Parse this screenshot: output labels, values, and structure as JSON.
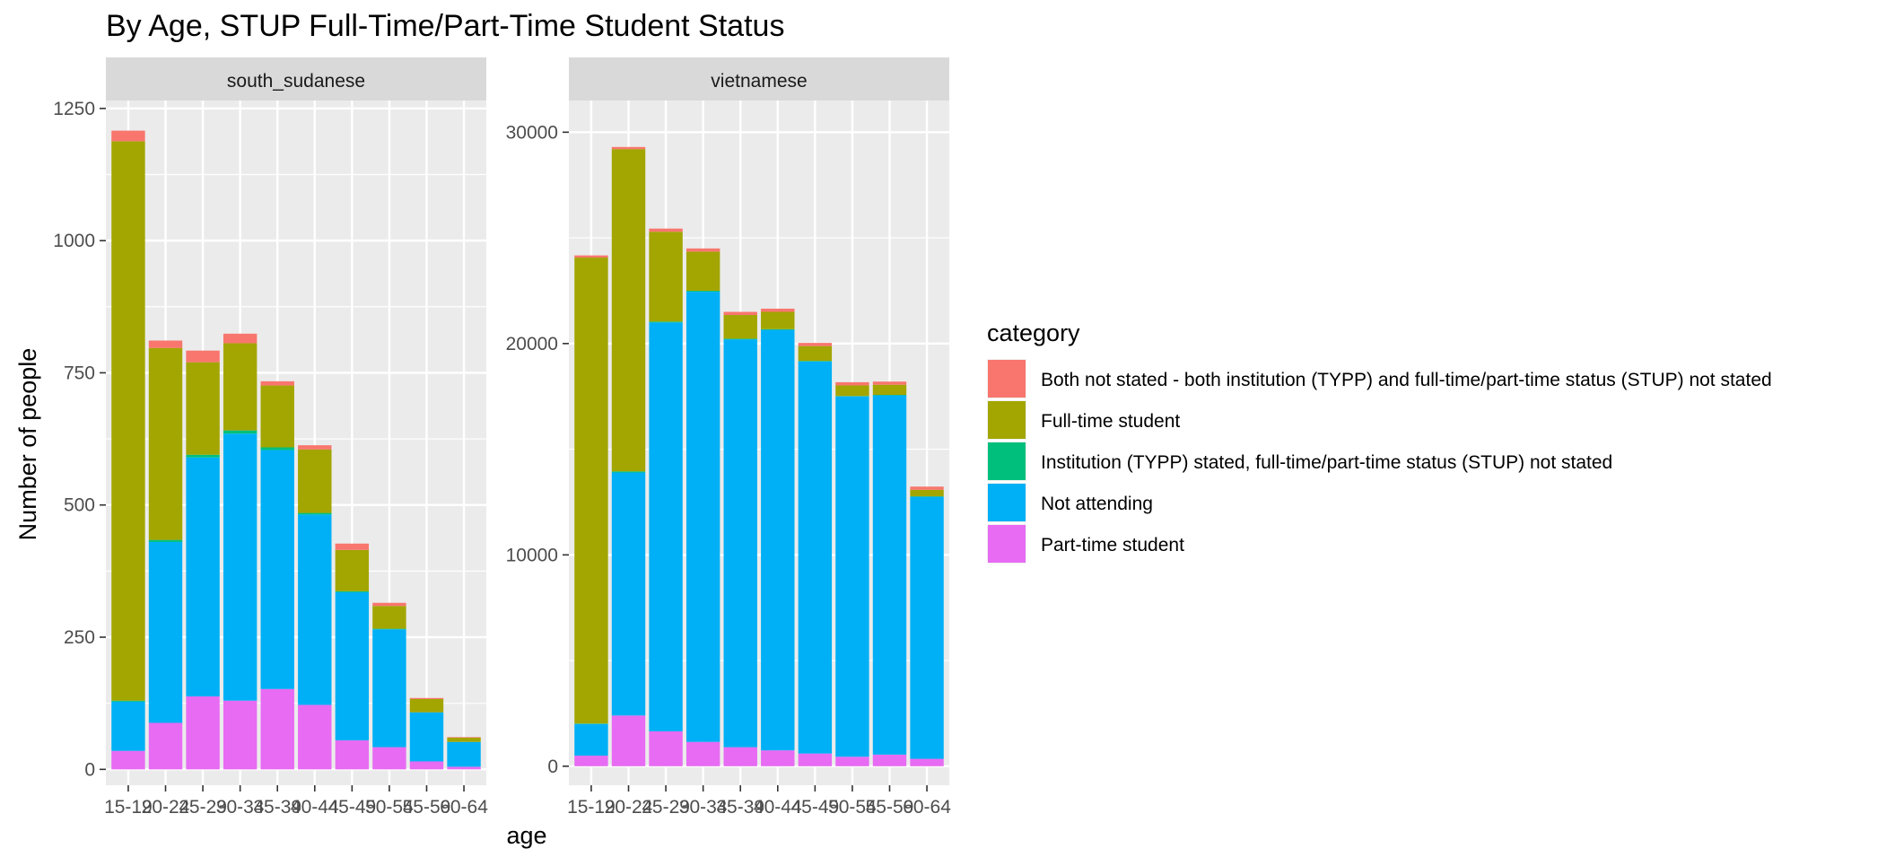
{
  "chart_data": {
    "type": "bar",
    "stacked": true,
    "title": "By Age,  STUP Full-Time/Part-Time Student Status",
    "xlabel": "age",
    "ylabel": "Number of people",
    "categories": [
      "15-19",
      "20-24",
      "25-29",
      "30-34",
      "35-39",
      "40-44",
      "45-49",
      "50-54",
      "55-59",
      "60-64"
    ],
    "grid": true,
    "legend": {
      "title": "category",
      "position": "right",
      "entries": [
        {
          "key": "both_not_stated",
          "label": "Both not stated - both institution (TYPP) and full-time/part-time status (STUP) not stated",
          "color": "#F8766D"
        },
        {
          "key": "full_time",
          "label": "Full-time student",
          "color": "#A3A500"
        },
        {
          "key": "inst_stated",
          "label": "Institution (TYPP) stated, full-time/part-time status (STUP) not stated",
          "color": "#00BF7D"
        },
        {
          "key": "not_attending",
          "label": "Not attending",
          "color": "#00B0F6"
        },
        {
          "key": "part_time",
          "label": "Part-time student",
          "color": "#E76BF3"
        }
      ]
    },
    "stack_order": [
      "part_time",
      "not_attending",
      "inst_stated",
      "full_time",
      "both_not_stated"
    ],
    "facets": [
      {
        "name": "south_sudanese",
        "ylim": [
          -30,
          1265
        ],
        "yticks": [
          0,
          250,
          500,
          750,
          1000,
          1250
        ],
        "ytick_labels": [
          "0",
          "250",
          "500",
          "750",
          "1000",
          "1250"
        ],
        "series": [
          {
            "key": "part_time",
            "values": [
              35,
              88,
              138,
              130,
              152,
              122,
              55,
              42,
              15,
              5
            ]
          },
          {
            "key": "not_attending",
            "values": [
              93,
              342,
              452,
              505,
              452,
              360,
              280,
              223,
              93,
              47
            ]
          },
          {
            "key": "inst_stated",
            "values": [
              2,
              4,
              5,
              6,
              5,
              3,
              2,
              1,
              0,
              0
            ]
          },
          {
            "key": "full_time",
            "values": [
              1058,
              363,
              175,
              165,
              117,
              120,
              78,
              43,
              25,
              8
            ]
          },
          {
            "key": "both_not_stated",
            "values": [
              20,
              14,
              22,
              18,
              8,
              8,
              12,
              6,
              2,
              1
            ]
          }
        ]
      },
      {
        "name": "vietnamese",
        "ylim": [
          -900,
          31500
        ],
        "yticks": [
          0,
          10000,
          20000,
          30000
        ],
        "ytick_labels": [
          "0",
          "10000",
          "20000",
          "30000"
        ],
        "series": [
          {
            "key": "part_time",
            "values": [
              500,
              2400,
              1650,
              1150,
              900,
              750,
              600,
              450,
              550,
              350
            ]
          },
          {
            "key": "not_attending",
            "values": [
              1500,
              11500,
              19350,
              21300,
              19300,
              19900,
              18550,
              17050,
              17000,
              12400
            ]
          },
          {
            "key": "inst_stated",
            "values": [
              20,
              50,
              40,
              50,
              30,
              30,
              30,
              20,
              20,
              20
            ]
          },
          {
            "key": "full_time",
            "values": [
              22050,
              15250,
              4250,
              1850,
              1120,
              820,
              700,
              500,
              480,
              310
            ]
          },
          {
            "key": "both_not_stated",
            "values": [
              100,
              100,
              150,
              150,
              150,
              150,
              150,
              150,
              150,
              150
            ]
          }
        ]
      }
    ]
  }
}
